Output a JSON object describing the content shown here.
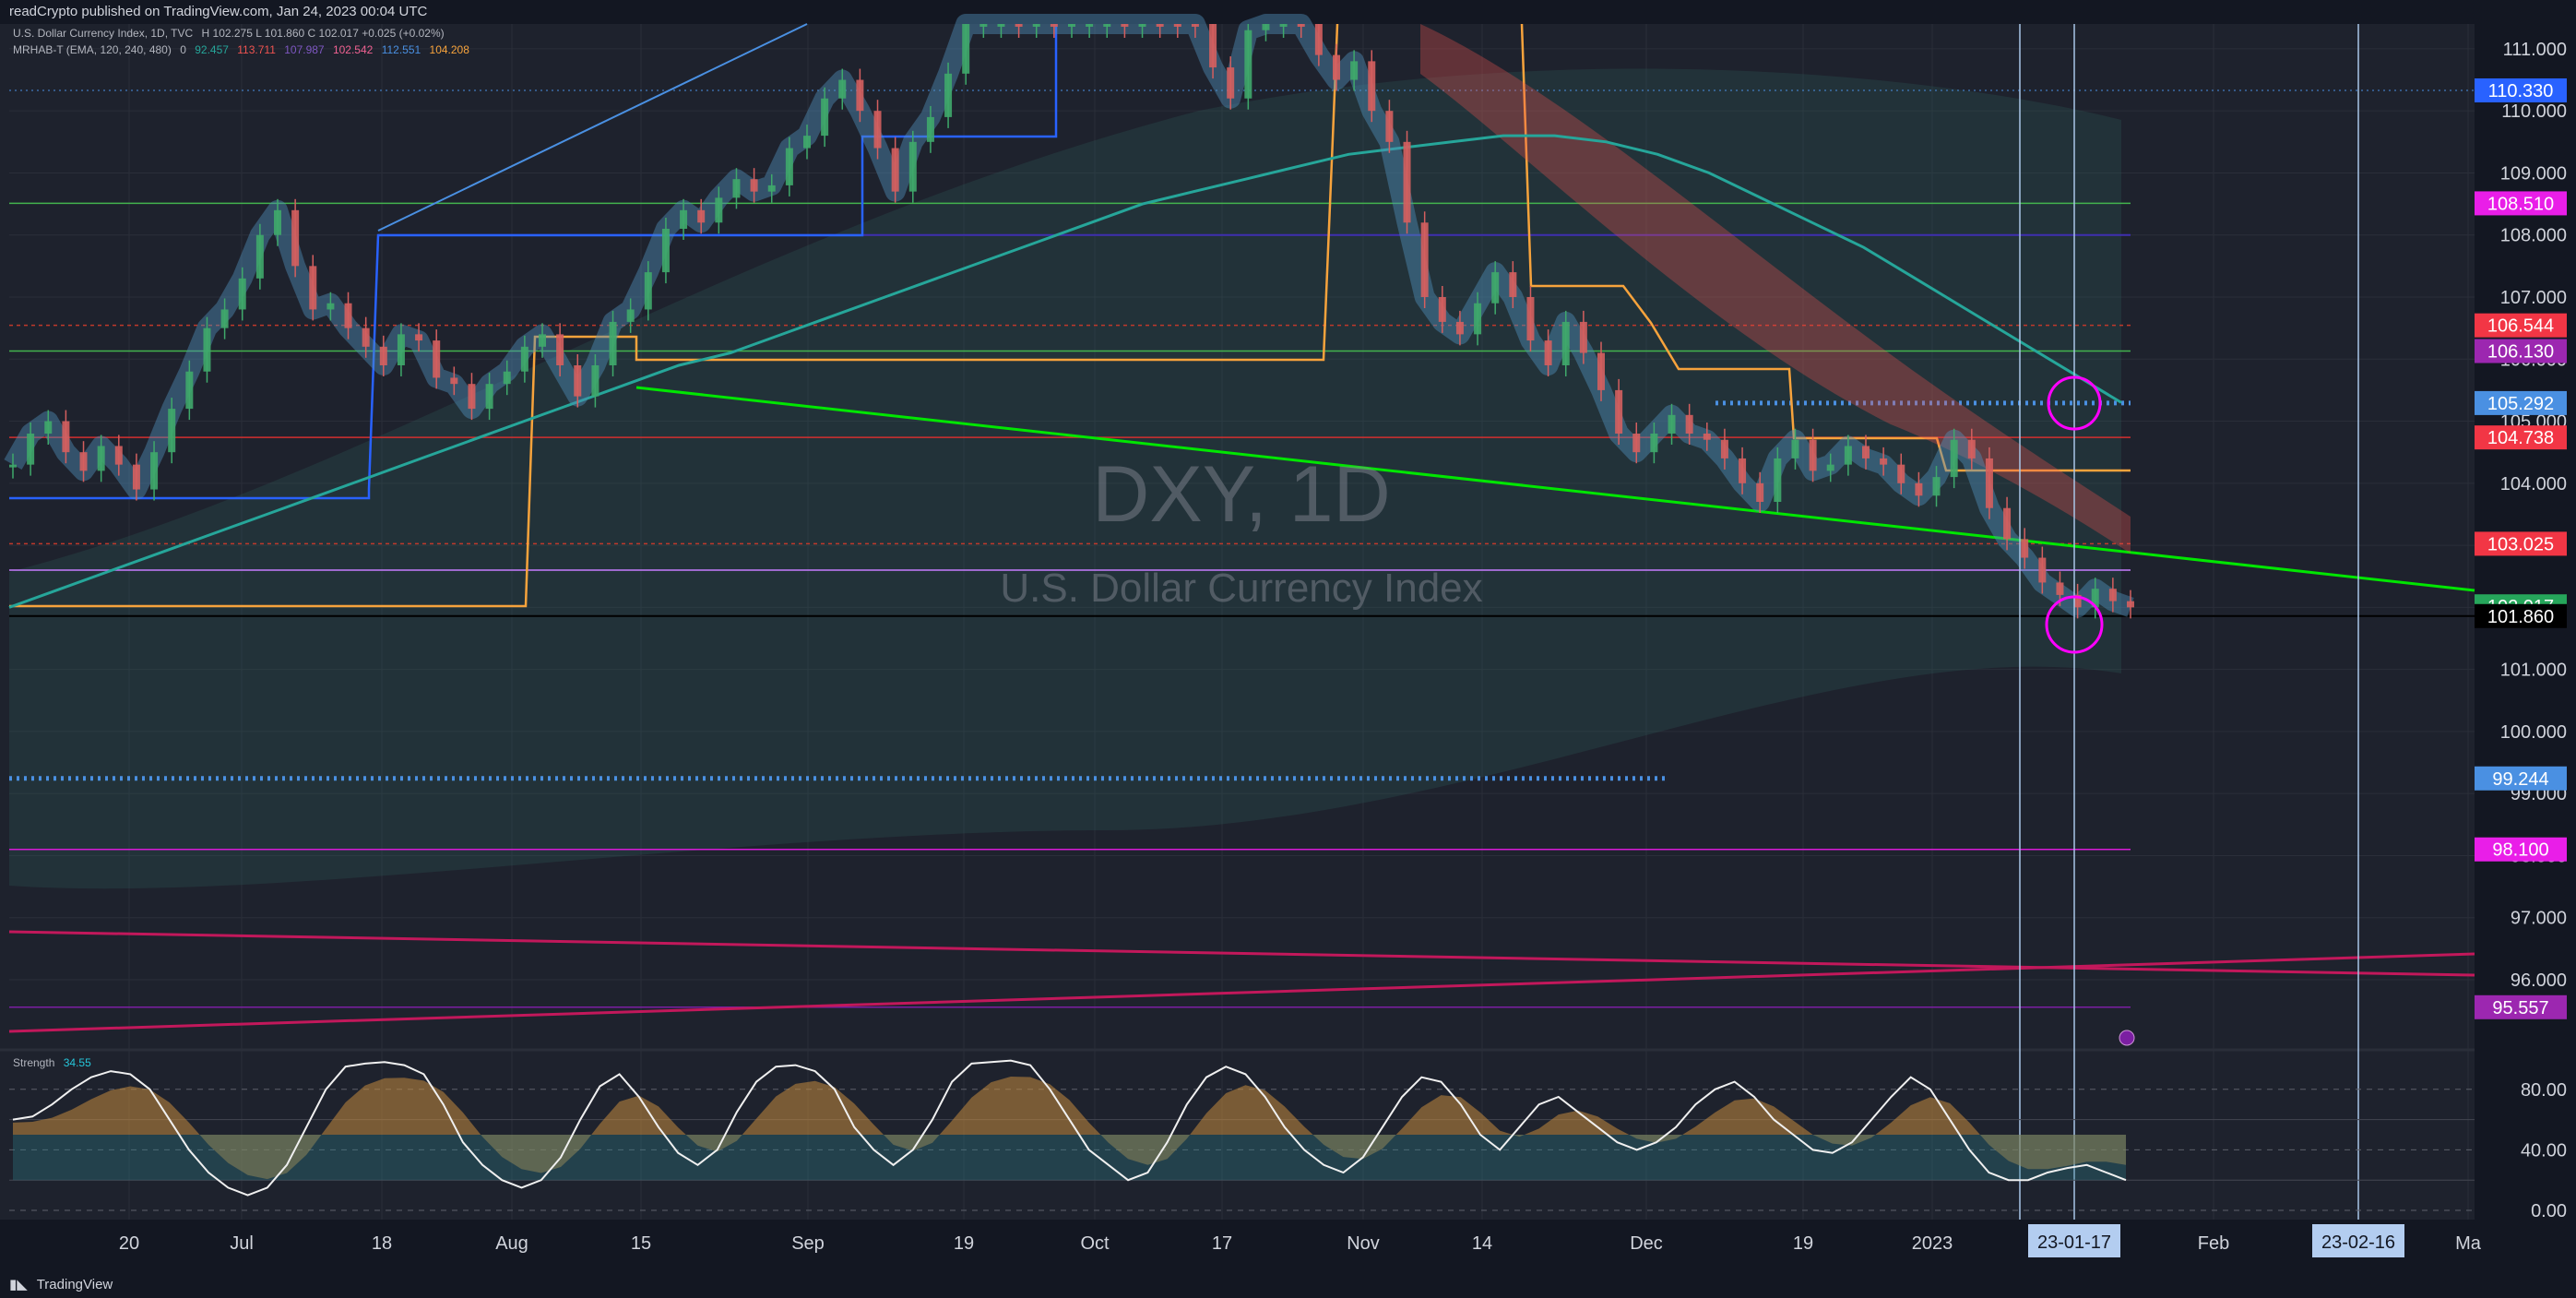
{
  "header": {
    "published_text": "readCrypto published on TradingView.com, Jan 24, 2023 00:04 UTC"
  },
  "legend": {
    "symbol_line": "U.S. Dollar Currency Index, 1D, TVC",
    "ohlc_line": "H 102.275  L 101.860  C 102.017  +0.025 (+0.02%)",
    "indicator_name": "MRHAB-T (EMA, 120, 240, 480)",
    "indicator_values": [
      "0",
      "92.457",
      "113.711",
      "107.987",
      "102.542",
      "112.551",
      "104.208"
    ],
    "strength_label": "Strength",
    "strength_value": "34.55"
  },
  "colors": {
    "background": "#1e222d",
    "axis_panel": "#131722",
    "uptrend_line": "#00e600",
    "blue_line": "#2962ff",
    "orange_line": "#f7a33c",
    "teal_ema": "#26a69a",
    "red_band": "#ef5350",
    "magenta": "#ff00ff",
    "purple": "#9c27b0",
    "crimson": "#c2185b"
  },
  "chart_data": {
    "type": "line",
    "symbol": "DXY",
    "timeframe": "1D",
    "watermark_symbol": "DXY, 1D",
    "watermark_name": "U.S. Dollar Currency Index",
    "ylim": [
      94.9,
      111.4
    ],
    "y_ticks": [
      "111.000",
      "110.000",
      "109.000",
      "108.000",
      "107.000",
      "106.000",
      "105.000",
      "104.000",
      "103.000",
      "102.000",
      "101.000",
      "100.000",
      "99.000",
      "98.000",
      "97.000",
      "96.000"
    ],
    "x_ticks": [
      "20",
      "Jul",
      "18",
      "Aug",
      "15",
      "Sep",
      "19",
      "Oct",
      "17",
      "Nov",
      "14",
      "Dec",
      "19",
      "2023",
      "Feb",
      "Ma"
    ],
    "date_markers": [
      "23-01-17",
      "23-02-16"
    ],
    "price_labels": [
      {
        "text": "110.330",
        "value": 110.33,
        "color": "#2962ff"
      },
      {
        "text": "108.510",
        "value": 108.51,
        "color": "#e91ee8"
      },
      {
        "text": "106.544",
        "value": 106.544,
        "color": "#f23645"
      },
      {
        "text": "106.130",
        "value": 106.13,
        "color": "#9c27b0"
      },
      {
        "text": "105.292",
        "value": 105.292,
        "color": "#4a90e2"
      },
      {
        "text": "104.738",
        "value": 104.738,
        "color": "#f23645"
      },
      {
        "text": "103.025",
        "value": 103.025,
        "color": "#f23645"
      },
      {
        "text": "102.017",
        "value": 102.017,
        "color": "#26a65b"
      },
      {
        "text": "101.860",
        "value": 101.86,
        "color": "#000000"
      },
      {
        "text": "99.244",
        "value": 99.244,
        "color": "#4a90e2"
      },
      {
        "text": "98.100",
        "value": 98.1,
        "color": "#e91ee8"
      },
      {
        "text": "95.557",
        "value": 95.557,
        "color": "#9c27b0"
      }
    ],
    "price_series": [
      104.3,
      104.8,
      105.0,
      104.5,
      104.2,
      104.6,
      104.3,
      103.9,
      104.5,
      105.2,
      105.8,
      106.5,
      106.8,
      107.3,
      108.0,
      108.4,
      107.5,
      106.8,
      106.9,
      106.5,
      106.2,
      105.9,
      106.4,
      106.3,
      105.7,
      105.6,
      105.2,
      105.6,
      105.8,
      106.2,
      106.4,
      105.9,
      105.4,
      105.9,
      106.6,
      106.8,
      107.4,
      108.1,
      108.4,
      108.2,
      108.6,
      108.9,
      108.7,
      108.8,
      109.4,
      109.6,
      110.2,
      110.5,
      110.0,
      109.4,
      108.7,
      109.5,
      109.9,
      110.6,
      111.5,
      112.0,
      112.5,
      112.3,
      112.6,
      111.8,
      112.0,
      112.3,
      112.6,
      112.2,
      113.3,
      112.9,
      112.8,
      111.5,
      110.7,
      110.2,
      111.3,
      111.9,
      112.2,
      111.6,
      110.9,
      110.5,
      110.8,
      110.0,
      109.5,
      108.2,
      107.0,
      106.6,
      106.4,
      106.9,
      107.4,
      107.0,
      106.3,
      105.9,
      106.6,
      106.1,
      105.5,
      104.8,
      104.5,
      104.8,
      105.1,
      104.8,
      104.7,
      104.4,
      104.0,
      103.7,
      104.4,
      104.7,
      104.2,
      104.3,
      104.6,
      104.4,
      104.3,
      104.0,
      103.8,
      104.1,
      104.7,
      104.4,
      103.6,
      103.1,
      102.8,
      102.4,
      102.2,
      102.0,
      102.3,
      102.1,
      102.0
    ],
    "ema_series": [
      102.0,
      102.3,
      102.6,
      102.9,
      103.2,
      103.5,
      103.8,
      104.1,
      104.4,
      104.7,
      105.0,
      105.3,
      105.6,
      105.9,
      106.1,
      106.4,
      106.7,
      107.0,
      107.3,
      107.6,
      107.9,
      108.2,
      108.5,
      108.7,
      108.9,
      109.1,
      109.3,
      109.4,
      109.5,
      109.6,
      109.6,
      109.5,
      109.3,
      109.0,
      108.6,
      108.2,
      107.8,
      107.3,
      106.8,
      106.3,
      105.8,
      105.3
    ],
    "strength_series": [
      60,
      62,
      70,
      80,
      88,
      92,
      90,
      80,
      60,
      40,
      25,
      15,
      10,
      15,
      30,
      55,
      80,
      95,
      97,
      98,
      96,
      90,
      70,
      45,
      30,
      20,
      15,
      20,
      35,
      60,
      82,
      90,
      75,
      55,
      38,
      30,
      40,
      65,
      85,
      95,
      96,
      92,
      80,
      55,
      40,
      30,
      40,
      60,
      85,
      97,
      98,
      99,
      96,
      80,
      60,
      40,
      30,
      20,
      25,
      45,
      70,
      88,
      95,
      90,
      75,
      55,
      40,
      30,
      25,
      35,
      55,
      75,
      88,
      85,
      70,
      50,
      40,
      55,
      70,
      75,
      65,
      55,
      45,
      40,
      45,
      55,
      70,
      80,
      85,
      75,
      60,
      50,
      40,
      38,
      45,
      60,
      75,
      88,
      80,
      60,
      40,
      25,
      20,
      20,
      25,
      28,
      30,
      25,
      20
    ],
    "strength_ylim": [
      0,
      100
    ],
    "strength_ticks": [
      "80.00",
      "40.00",
      "0.00"
    ]
  }
}
